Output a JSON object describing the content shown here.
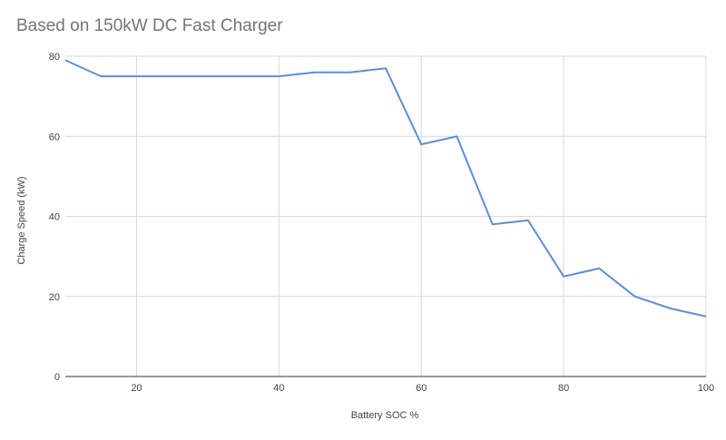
{
  "chart_data": {
    "type": "line",
    "title": "Based on 150kW DC Fast Charger",
    "xlabel": "Battery SOC %",
    "ylabel": "Charge Speed (kW)",
    "xlim": [
      10,
      100
    ],
    "ylim": [
      0,
      80
    ],
    "xticks": [
      20,
      40,
      60,
      80,
      100
    ],
    "yticks": [
      0,
      20,
      40,
      60,
      80
    ],
    "grid": true,
    "series": [
      {
        "x": [
          10,
          15,
          20,
          25,
          30,
          35,
          40,
          45,
          50,
          55,
          60,
          65,
          70,
          75,
          80,
          85,
          90,
          95,
          100
        ],
        "values": [
          79,
          75,
          75,
          75,
          75,
          75,
          75,
          76,
          76,
          77,
          58,
          60,
          38,
          39,
          25,
          27,
          20,
          17,
          15
        ]
      }
    ],
    "colors": {
      "line": "#5b8fd6",
      "grid": "#d9d9d9",
      "axis": "#333333",
      "text": "#444444",
      "title": "#757575"
    }
  }
}
